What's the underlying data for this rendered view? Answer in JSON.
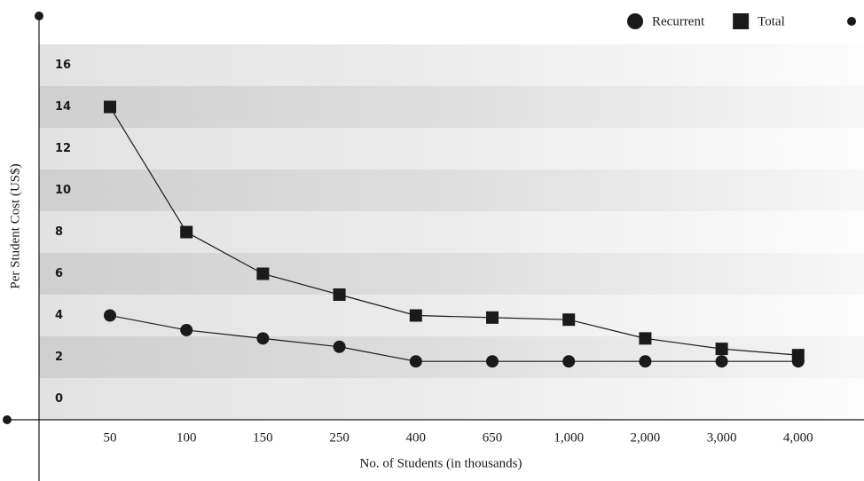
{
  "chart_data": {
    "type": "line",
    "y_label": "Per Student Cost (US$)",
    "x_label": "No. of Students (in thousands)",
    "categories": [
      "50",
      "100",
      "150",
      "250",
      "400",
      "650",
      "1,000",
      "2,000",
      "3,000",
      "4,000"
    ],
    "series": [
      {
        "name": "Recurrent",
        "color": "#1a1a1a",
        "marker": "circle",
        "values": [
          4.0,
          3.3,
          2.9,
          2.5,
          1.8,
          1.8,
          1.8,
          1.8,
          1.8,
          1.8
        ]
      },
      {
        "name": "Total",
        "color": "#1a1a1a",
        "marker": "square",
        "values": [
          14,
          8,
          6,
          5,
          4.0,
          3.9,
          3.8,
          2.9,
          2.4,
          2.1
        ]
      }
    ],
    "ylim": [
      -1,
      17
    ],
    "yticks": [
      0,
      2,
      4,
      6,
      8,
      10,
      12,
      14,
      16
    ],
    "grid": true,
    "legend": "top-right"
  }
}
